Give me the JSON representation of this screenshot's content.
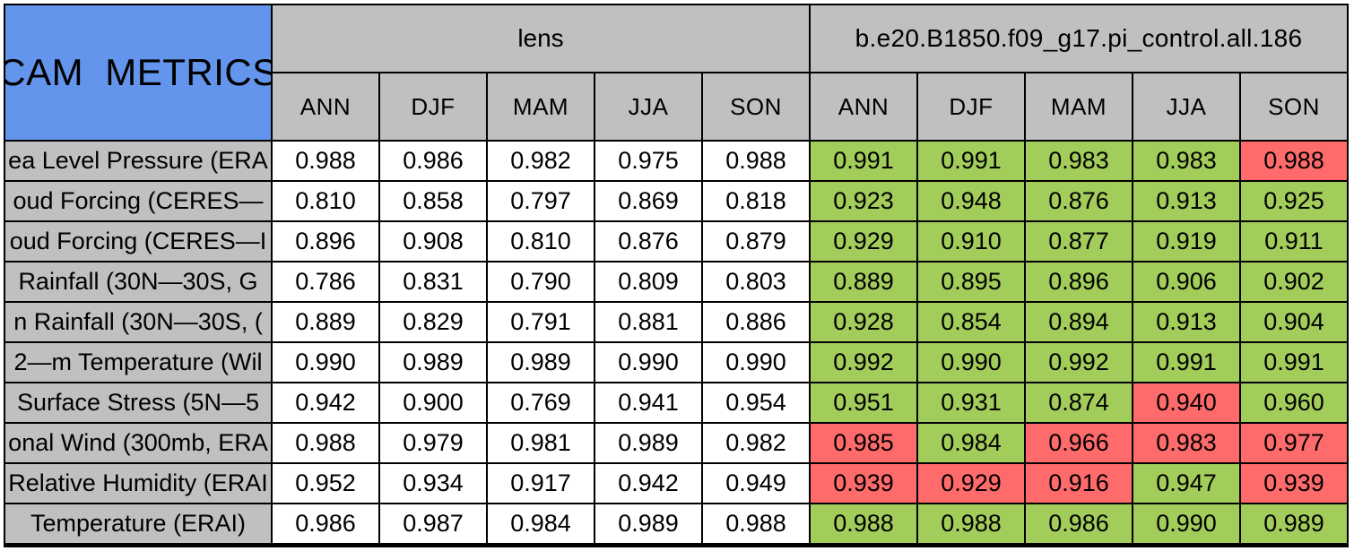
{
  "colors": {
    "title_background": "#6495ED",
    "header_background": "#C0C0C0",
    "value_background": "#FFFFFF",
    "better_green": "#A2CD5A",
    "worse_red": "#FF6A6A",
    "border_black": "#000000"
  },
  "chart_data": {
    "type": "table",
    "title": "CAM METRICS",
    "legend_note": "right block cells shaded green (better) or red (worse)",
    "groups": [
      {
        "label": "lens",
        "seasons": [
          "ANN",
          "DJF",
          "MAM",
          "JJA",
          "SON"
        ]
      },
      {
        "label": "b.e20.B1850.f09_g17.pi_control.all.186",
        "seasons": [
          "ANN",
          "DJF",
          "MAM",
          "JJA",
          "SON"
        ]
      }
    ],
    "rows": [
      {
        "label": "ea Level Pressure (ERA",
        "lens": [
          "0.988",
          "0.986",
          "0.982",
          "0.975",
          "0.988"
        ],
        "control": [
          "0.991",
          "0.991",
          "0.983",
          "0.983",
          "0.988"
        ],
        "control_status": [
          "green",
          "green",
          "green",
          "green",
          "red"
        ]
      },
      {
        "label": "oud Forcing (CERES—",
        "lens": [
          "0.810",
          "0.858",
          "0.797",
          "0.869",
          "0.818"
        ],
        "control": [
          "0.923",
          "0.948",
          "0.876",
          "0.913",
          "0.925"
        ],
        "control_status": [
          "green",
          "green",
          "green",
          "green",
          "green"
        ]
      },
      {
        "label": "oud Forcing (CERES—I",
        "lens": [
          "0.896",
          "0.908",
          "0.810",
          "0.876",
          "0.879"
        ],
        "control": [
          "0.929",
          "0.910",
          "0.877",
          "0.919",
          "0.911"
        ],
        "control_status": [
          "green",
          "green",
          "green",
          "green",
          "green"
        ]
      },
      {
        "label": "Rainfall (30N—30S, G",
        "lens": [
          "0.786",
          "0.831",
          "0.790",
          "0.809",
          "0.803"
        ],
        "control": [
          "0.889",
          "0.895",
          "0.896",
          "0.906",
          "0.902"
        ],
        "control_status": [
          "green",
          "green",
          "green",
          "green",
          "green"
        ]
      },
      {
        "label": "n Rainfall (30N—30S, (",
        "lens": [
          "0.889",
          "0.829",
          "0.791",
          "0.881",
          "0.886"
        ],
        "control": [
          "0.928",
          "0.854",
          "0.894",
          "0.913",
          "0.904"
        ],
        "control_status": [
          "green",
          "green",
          "green",
          "green",
          "green"
        ]
      },
      {
        "label": "2—m Temperature (Wil",
        "lens": [
          "0.990",
          "0.989",
          "0.989",
          "0.990",
          "0.990"
        ],
        "control": [
          "0.992",
          "0.990",
          "0.992",
          "0.991",
          "0.991"
        ],
        "control_status": [
          "green",
          "green",
          "green",
          "green",
          "green"
        ]
      },
      {
        "label": "Surface Stress (5N—5",
        "lens": [
          "0.942",
          "0.900",
          "0.769",
          "0.941",
          "0.954"
        ],
        "control": [
          "0.951",
          "0.931",
          "0.874",
          "0.940",
          "0.960"
        ],
        "control_status": [
          "green",
          "green",
          "green",
          "red",
          "green"
        ]
      },
      {
        "label": "onal Wind (300mb, ERA",
        "lens": [
          "0.988",
          "0.979",
          "0.981",
          "0.989",
          "0.982"
        ],
        "control": [
          "0.985",
          "0.984",
          "0.966",
          "0.983",
          "0.977"
        ],
        "control_status": [
          "red",
          "green",
          "red",
          "red",
          "red"
        ]
      },
      {
        "label": "Relative Humidity (ERAI",
        "lens": [
          "0.952",
          "0.934",
          "0.917",
          "0.942",
          "0.949"
        ],
        "control": [
          "0.939",
          "0.929",
          "0.916",
          "0.947",
          "0.939"
        ],
        "control_status": [
          "red",
          "red",
          "red",
          "green",
          "red"
        ]
      },
      {
        "label": "Temperature (ERAI)",
        "lens": [
          "0.986",
          "0.987",
          "0.984",
          "0.989",
          "0.988"
        ],
        "control": [
          "0.988",
          "0.988",
          "0.986",
          "0.990",
          "0.989"
        ],
        "control_status": [
          "green",
          "green",
          "green",
          "green",
          "green"
        ]
      }
    ]
  }
}
